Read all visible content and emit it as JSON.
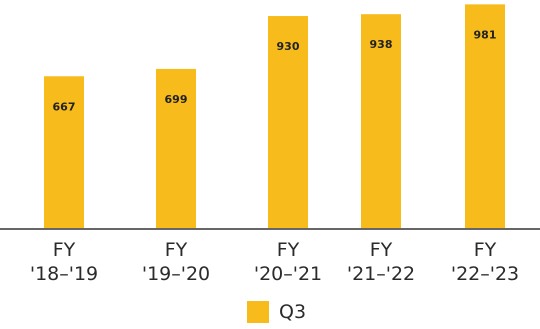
{
  "chart_data": {
    "type": "bar",
    "categories": [
      [
        "FY",
        "'18–'19"
      ],
      [
        "FY",
        "'19–'20"
      ],
      [
        "FY",
        "'20–'21"
      ],
      [
        "FY",
        "'21–'22"
      ],
      [
        "FY",
        "'22–'23"
      ]
    ],
    "series": [
      {
        "name": "Q3",
        "values": [
          667,
          699,
          930,
          938,
          981
        ],
        "color": "#F7BC1B"
      }
    ],
    "ylim": [
      0,
      1000
    ],
    "grid": false,
    "axis_color": "#666666",
    "legend": {
      "position": "bottom"
    }
  }
}
